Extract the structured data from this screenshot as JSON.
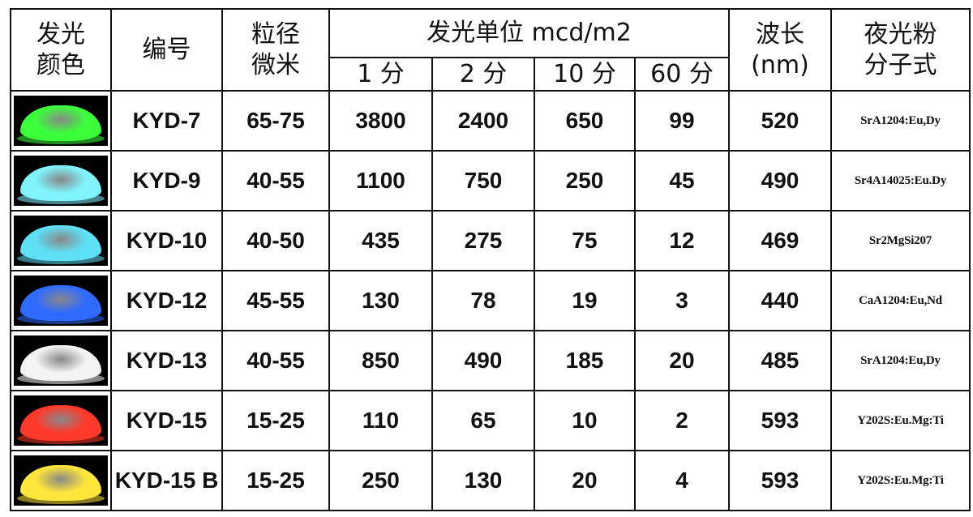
{
  "headers": {
    "color": "发光\n颜色",
    "color_l1": "发光",
    "color_l2": "颜色",
    "code": "编号",
    "size_l1": "粒径",
    "size_l2": "微米",
    "luminance": "发光单位 mcd/m2",
    "t1": "1 分",
    "t2": "2 分",
    "t10": "10 分",
    "t60": "60 分",
    "wave_l1": "波长",
    "wave_l2": "(nm)",
    "formula_l1": "夜光粉",
    "formula_l2": "分子式"
  },
  "rows": [
    {
      "glow": "#3cff3c",
      "code": "KYD-7",
      "size": "65-75",
      "m1": "3800",
      "m2": "2400",
      "m10": "650",
      "m60": "99",
      "wave": "520",
      "formula": "SrA1204:Eu,Dy"
    },
    {
      "glow": "#7ff4ff",
      "code": "KYD-9",
      "size": "40-55",
      "m1": "1100",
      "m2": "750",
      "m10": "250",
      "m60": "45",
      "wave": "490",
      "formula": "Sr4A14025:Eu.Dy"
    },
    {
      "glow": "#5ee0f5",
      "code": "KYD-10",
      "size": "40-50",
      "m1": "435",
      "m2": "275",
      "m10": "75",
      "m60": "12",
      "wave": "469",
      "formula": "Sr2MgSi207"
    },
    {
      "glow": "#2f6bff",
      "code": "KYD-12",
      "size": "45-55",
      "m1": "130",
      "m2": "78",
      "m10": "19",
      "m60": "3",
      "wave": "440",
      "formula": "CaA1204:Eu,Nd"
    },
    {
      "glow": "#f4f4f4",
      "code": "KYD-13",
      "size": "40-55",
      "m1": "850",
      "m2": "490",
      "m10": "185",
      "m60": "20",
      "wave": "485",
      "formula": "SrA1204:Eu,Dy"
    },
    {
      "glow": "#ff3a2a",
      "code": "KYD-15",
      "size": "15-25",
      "m1": "110",
      "m2": "65",
      "m10": "10",
      "m60": "2",
      "wave": "593",
      "formula": "Y202S:Eu.Mg:Ti"
    },
    {
      "glow": "#ffe63a",
      "code": "KYD-15 B",
      "size": "15-25",
      "m1": "250",
      "m2": "130",
      "m10": "20",
      "m60": "4",
      "wave": "593",
      "formula": "Y202S:Eu.Mg:Ti"
    }
  ]
}
